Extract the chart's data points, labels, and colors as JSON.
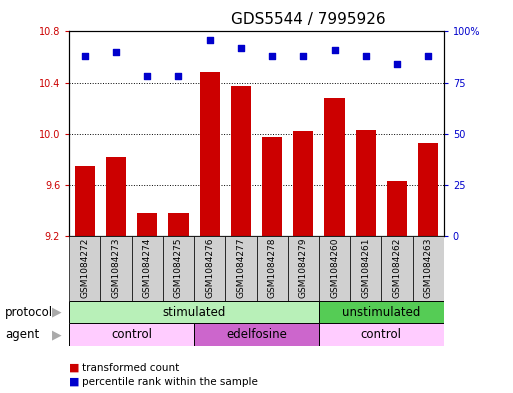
{
  "title": "GDS5544 / 7995926",
  "categories": [
    "GSM1084272",
    "GSM1084273",
    "GSM1084274",
    "GSM1084275",
    "GSM1084276",
    "GSM1084277",
    "GSM1084278",
    "GSM1084279",
    "GSM1084260",
    "GSM1084261",
    "GSM1084262",
    "GSM1084263"
  ],
  "bar_values": [
    9.75,
    9.82,
    9.38,
    9.38,
    10.48,
    10.37,
    9.97,
    10.02,
    10.28,
    10.03,
    9.63,
    9.93
  ],
  "scatter_pct": [
    88,
    90,
    78,
    78,
    96,
    92,
    88,
    88,
    91,
    88,
    84,
    88
  ],
  "bar_color": "#cc0000",
  "scatter_color": "#0000cc",
  "ylim_left": [
    9.2,
    10.8
  ],
  "yticks_left": [
    9.2,
    9.6,
    10.0,
    10.4,
    10.8
  ],
  "ylim_right": [
    0,
    100
  ],
  "yticks_right": [
    0,
    25,
    50,
    75,
    100
  ],
  "yticklabels_right": [
    "0",
    "25",
    "50",
    "75",
    "100%"
  ],
  "protocol_groups": [
    {
      "label": "stimulated",
      "start": 0,
      "end": 8,
      "color": "#b8f0b8"
    },
    {
      "label": "unstimulated",
      "start": 8,
      "end": 12,
      "color": "#55cc55"
    }
  ],
  "agent_groups": [
    {
      "label": "control",
      "start": 0,
      "end": 4,
      "color": "#ffccff"
    },
    {
      "label": "edelfosine",
      "start": 4,
      "end": 8,
      "color": "#cc66cc"
    },
    {
      "label": "control",
      "start": 8,
      "end": 12,
      "color": "#ffccff"
    }
  ],
  "legend_items": [
    {
      "label": "transformed count",
      "color": "#cc0000"
    },
    {
      "label": "percentile rank within the sample",
      "color": "#0000cc"
    }
  ],
  "protocol_label": "protocol",
  "agent_label": "agent",
  "title_fontsize": 11,
  "tick_fontsize": 7,
  "label_fontsize": 9
}
